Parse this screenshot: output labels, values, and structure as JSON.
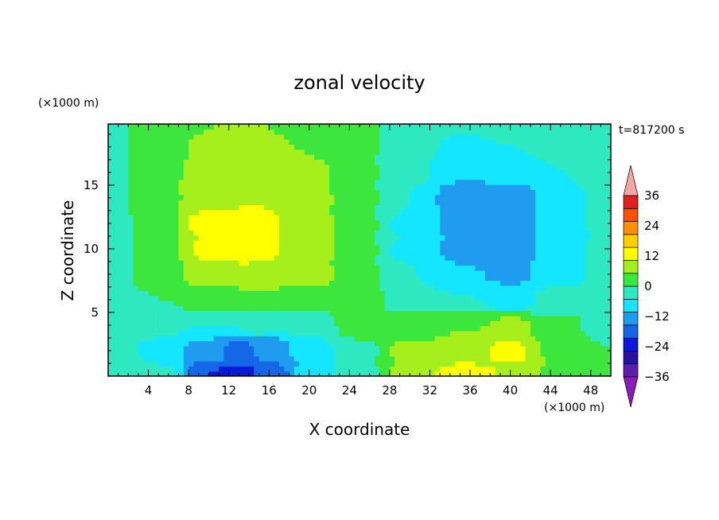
{
  "chart_data": {
    "type": "heatmap",
    "title": "zonal velocity",
    "xlabel": "X coordinate",
    "ylabel": "Z coordinate",
    "x_unit": "(×1000 m)",
    "y_unit": "(×1000 m)",
    "time_label": "t=817200 s",
    "xlim": [
      0,
      50
    ],
    "ylim": [
      0,
      19.8
    ],
    "x_ticks": [
      4,
      8,
      12,
      16,
      20,
      24,
      28,
      32,
      36,
      40,
      44,
      48
    ],
    "y_ticks": [
      5,
      10,
      15
    ],
    "colorbar": {
      "levels": [
        -42,
        -36,
        -30,
        -24,
        -18,
        -12,
        -6,
        0,
        6,
        12,
        18,
        24,
        30,
        36,
        42
      ],
      "tick_labels": [
        "36",
        "24",
        "12",
        "0",
        "−12",
        "−24",
        "−36"
      ],
      "tick_values": [
        36,
        24,
        12,
        0,
        -12,
        -24,
        -36
      ],
      "colors": [
        "#8c1cb8",
        "#5b1fa8",
        "#2a10a0",
        "#0a1ad6",
        "#1468e8",
        "#1f9cf0",
        "#14e6ff",
        "#2de8c0",
        "#3de63d",
        "#a6ee1c",
        "#ffff00",
        "#ffd000",
        "#ff9000",
        "#ff5000",
        "#e0201c",
        "#f4a6a6"
      ],
      "extend": "both"
    },
    "field_points": [
      {
        "x": 0,
        "z": 0,
        "u": -2
      },
      {
        "x": 5,
        "z": 0,
        "u": -4
      },
      {
        "x": 10,
        "z": 0,
        "u": -24
      },
      {
        "x": 13,
        "z": 0,
        "u": -30
      },
      {
        "x": 16,
        "z": 0,
        "u": -22
      },
      {
        "x": 20,
        "z": 0,
        "u": -10
      },
      {
        "x": 25,
        "z": 0,
        "u": -3
      },
      {
        "x": 30,
        "z": 0,
        "u": 9
      },
      {
        "x": 35,
        "z": 0,
        "u": 15
      },
      {
        "x": 40,
        "z": 0,
        "u": 12
      },
      {
        "x": 45,
        "z": 0,
        "u": 4
      },
      {
        "x": 50,
        "z": 0,
        "u": 0
      },
      {
        "x": 0,
        "z": 2,
        "u": -1
      },
      {
        "x": 5,
        "z": 2,
        "u": -7
      },
      {
        "x": 10,
        "z": 2,
        "u": -16
      },
      {
        "x": 13,
        "z": 2,
        "u": -20
      },
      {
        "x": 16,
        "z": 2,
        "u": -17
      },
      {
        "x": 20,
        "z": 2,
        "u": -10
      },
      {
        "x": 25,
        "z": 2,
        "u": -1
      },
      {
        "x": 30,
        "z": 2,
        "u": 7
      },
      {
        "x": 35,
        "z": 2,
        "u": 10
      },
      {
        "x": 40,
        "z": 2,
        "u": 13
      },
      {
        "x": 45,
        "z": 2,
        "u": 5
      },
      {
        "x": 50,
        "z": 2,
        "u": 0
      },
      {
        "x": 0,
        "z": 4,
        "u": -3
      },
      {
        "x": 5,
        "z": 4,
        "u": -5
      },
      {
        "x": 10,
        "z": 4,
        "u": -6
      },
      {
        "x": 15,
        "z": 4,
        "u": -5
      },
      {
        "x": 20,
        "z": 4,
        "u": -4
      },
      {
        "x": 25,
        "z": 4,
        "u": 2
      },
      {
        "x": 30,
        "z": 4,
        "u": 3
      },
      {
        "x": 35,
        "z": 4,
        "u": 6
      },
      {
        "x": 40,
        "z": 4,
        "u": 7
      },
      {
        "x": 45,
        "z": 4,
        "u": 1
      },
      {
        "x": 50,
        "z": 4,
        "u": -3
      },
      {
        "x": 0,
        "z": 6,
        "u": -4
      },
      {
        "x": 5,
        "z": 6,
        "u": 0
      },
      {
        "x": 10,
        "z": 6,
        "u": 3
      },
      {
        "x": 15,
        "z": 6,
        "u": 4
      },
      {
        "x": 20,
        "z": 6,
        "u": 3
      },
      {
        "x": 25,
        "z": 6,
        "u": 2
      },
      {
        "x": 30,
        "z": 6,
        "u": -2
      },
      {
        "x": 35,
        "z": 6,
        "u": -6
      },
      {
        "x": 40,
        "z": 6,
        "u": -8
      },
      {
        "x": 45,
        "z": 6,
        "u": -4
      },
      {
        "x": 50,
        "z": 6,
        "u": -3
      },
      {
        "x": 0,
        "z": 8,
        "u": -4
      },
      {
        "x": 5,
        "z": 8,
        "u": 3
      },
      {
        "x": 10,
        "z": 8,
        "u": 9
      },
      {
        "x": 15,
        "z": 8,
        "u": 11
      },
      {
        "x": 20,
        "z": 8,
        "u": 9
      },
      {
        "x": 25,
        "z": 8,
        "u": 2
      },
      {
        "x": 30,
        "z": 8,
        "u": -6
      },
      {
        "x": 35,
        "z": 8,
        "u": -12
      },
      {
        "x": 40,
        "z": 8,
        "u": -13
      },
      {
        "x": 45,
        "z": 8,
        "u": -8
      },
      {
        "x": 50,
        "z": 8,
        "u": -3
      },
      {
        "x": 0,
        "z": 10,
        "u": -4
      },
      {
        "x": 5,
        "z": 10,
        "u": 3
      },
      {
        "x": 10,
        "z": 10,
        "u": 13
      },
      {
        "x": 14,
        "z": 10,
        "u": 15
      },
      {
        "x": 20,
        "z": 10,
        "u": 10
      },
      {
        "x": 25,
        "z": 10,
        "u": 1
      },
      {
        "x": 30,
        "z": 10,
        "u": -7
      },
      {
        "x": 35,
        "z": 10,
        "u": -14
      },
      {
        "x": 40,
        "z": 10,
        "u": -18
      },
      {
        "x": 45,
        "z": 10,
        "u": -9
      },
      {
        "x": 50,
        "z": 10,
        "u": -4
      },
      {
        "x": 0,
        "z": 12,
        "u": -3
      },
      {
        "x": 5,
        "z": 12,
        "u": 4
      },
      {
        "x": 10,
        "z": 12,
        "u": 14
      },
      {
        "x": 14,
        "z": 12,
        "u": 15
      },
      {
        "x": 20,
        "z": 12,
        "u": 10
      },
      {
        "x": 25,
        "z": 12,
        "u": 1
      },
      {
        "x": 30,
        "z": 12,
        "u": -7
      },
      {
        "x": 35,
        "z": 12,
        "u": -14
      },
      {
        "x": 40,
        "z": 12,
        "u": -14
      },
      {
        "x": 45,
        "z": 12,
        "u": -9
      },
      {
        "x": 50,
        "z": 12,
        "u": -4
      },
      {
        "x": 0,
        "z": 14,
        "u": -2
      },
      {
        "x": 5,
        "z": 14,
        "u": 4
      },
      {
        "x": 10,
        "z": 14,
        "u": 10
      },
      {
        "x": 14,
        "z": 14,
        "u": 12
      },
      {
        "x": 20,
        "z": 14,
        "u": 9
      },
      {
        "x": 25,
        "z": 14,
        "u": 1
      },
      {
        "x": 30,
        "z": 14,
        "u": -6
      },
      {
        "x": 35,
        "z": 14,
        "u": -16
      },
      {
        "x": 40,
        "z": 14,
        "u": -17
      },
      {
        "x": 45,
        "z": 14,
        "u": -8
      },
      {
        "x": 50,
        "z": 14,
        "u": -3
      },
      {
        "x": 0,
        "z": 16,
        "u": -2
      },
      {
        "x": 5,
        "z": 16,
        "u": 4
      },
      {
        "x": 10,
        "z": 16,
        "u": 9
      },
      {
        "x": 14,
        "z": 16,
        "u": 12
      },
      {
        "x": 20,
        "z": 16,
        "u": 8
      },
      {
        "x": 25,
        "z": 16,
        "u": 1
      },
      {
        "x": 30,
        "z": 16,
        "u": -5
      },
      {
        "x": 35,
        "z": 16,
        "u": -12
      },
      {
        "x": 40,
        "z": 16,
        "u": -10
      },
      {
        "x": 45,
        "z": 16,
        "u": -6
      },
      {
        "x": 50,
        "z": 16,
        "u": -3
      },
      {
        "x": 0,
        "z": 18,
        "u": -1
      },
      {
        "x": 5,
        "z": 18,
        "u": 3
      },
      {
        "x": 10,
        "z": 18,
        "u": 7
      },
      {
        "x": 14,
        "z": 18,
        "u": 8
      },
      {
        "x": 20,
        "z": 18,
        "u": 6
      },
      {
        "x": 25,
        "z": 18,
        "u": 1
      },
      {
        "x": 30,
        "z": 18,
        "u": -4
      },
      {
        "x": 35,
        "z": 18,
        "u": -7
      },
      {
        "x": 40,
        "z": 18,
        "u": -6
      },
      {
        "x": 45,
        "z": 18,
        "u": -4
      },
      {
        "x": 50,
        "z": 18,
        "u": -2
      },
      {
        "x": 0,
        "z": 19.8,
        "u": -1
      },
      {
        "x": 5,
        "z": 19.8,
        "u": 3
      },
      {
        "x": 10,
        "z": 19.8,
        "u": 6
      },
      {
        "x": 14,
        "z": 19.8,
        "u": 6
      },
      {
        "x": 20,
        "z": 19.8,
        "u": 5
      },
      {
        "x": 25,
        "z": 19.8,
        "u": 1
      },
      {
        "x": 30,
        "z": 19.8,
        "u": -3
      },
      {
        "x": 35,
        "z": 19.8,
        "u": -5
      },
      {
        "x": 40,
        "z": 19.8,
        "u": -5
      },
      {
        "x": 45,
        "z": 19.8,
        "u": -4
      },
      {
        "x": 50,
        "z": 19.8,
        "u": -2
      }
    ]
  }
}
